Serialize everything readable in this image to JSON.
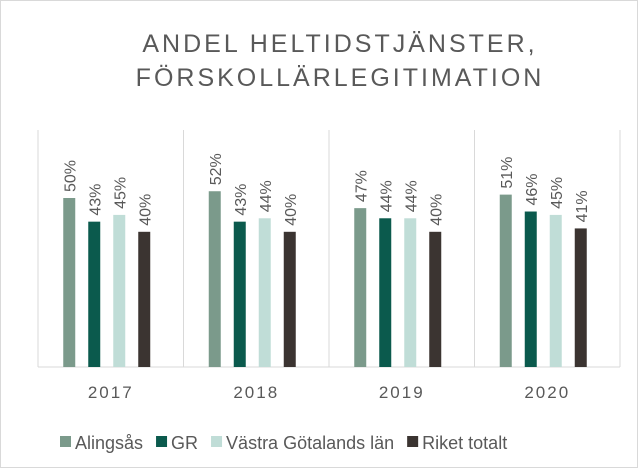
{
  "chart_data": {
    "type": "bar",
    "title": [
      "ANDEL HELTIDSTJÄNSTER,",
      "FÖRSKOLLÄRLEGITIMATION"
    ],
    "categories": [
      "2017",
      "2018",
      "2019",
      "2020"
    ],
    "series": [
      {
        "name": "Alingsås",
        "color": "#7b9a8b",
        "values": [
          50,
          52,
          47,
          51
        ],
        "value_labels": [
          "50%",
          "52%",
          "47%",
          "51%"
        ]
      },
      {
        "name": "GR",
        "color": "#0b5a4d",
        "values": [
          43,
          43,
          44,
          46
        ],
        "value_labels": [
          "43%",
          "43%",
          "44%",
          "46%"
        ]
      },
      {
        "name": "Västra Götalands län",
        "color": "#c0ddd7",
        "values": [
          45,
          44,
          44,
          45
        ],
        "value_labels": [
          "45%",
          "44%",
          "44%",
          "45%"
        ]
      },
      {
        "name": "Riket totalt",
        "color": "#3b3431",
        "values": [
          40,
          40,
          40,
          41
        ],
        "value_labels": [
          "40%",
          "40%",
          "40%",
          "41%"
        ]
      }
    ],
    "ylim": [
      0,
      100
    ],
    "legend": "bottom"
  }
}
